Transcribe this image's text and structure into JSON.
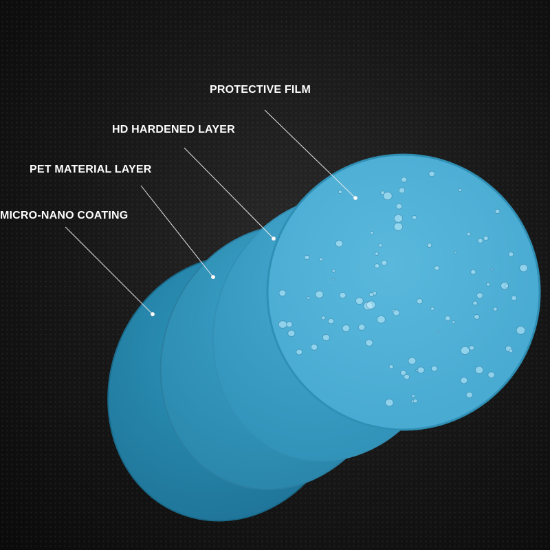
{
  "layers": [
    {
      "label": "PROTECTIVE FILM",
      "color": "#4fb0d6"
    },
    {
      "label": "HD HARDENED LAYER",
      "color": "#3ea0c6"
    },
    {
      "label": "PET MATERIAL LAYER",
      "color": "#3494ba"
    },
    {
      "label": "MICRO-NANO COATING",
      "color": "#2b88ad"
    }
  ]
}
